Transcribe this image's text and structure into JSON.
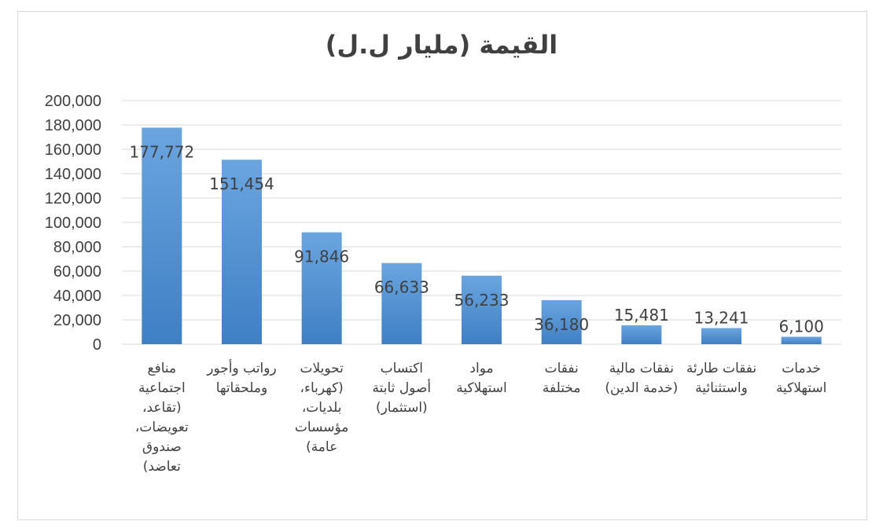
{
  "chart_data": {
    "type": "bar",
    "title": "القيمة  (مليار ل.ل)",
    "categories": [
      "منافع اجتماعية (تقاعد، تعويضات، صندوق تعاضد)",
      "رواتب وأجور وملحقاتها",
      "تحويلات (كهرباء، بلديات، مؤسسات عامة)",
      "اكتساب أصول ثابتة (استثمار)",
      "مواد استهلاكية",
      "نفقات مختلفة",
      "نفقات مالية (خدمة الدين)",
      "نفقات طارئة واستثنائية",
      "خدمات استهلاكية"
    ],
    "values": [
      177772,
      151454,
      91846,
      66633,
      56233,
      36180,
      15481,
      13241,
      6100
    ],
    "data_labels": [
      "177,772",
      "151,454",
      "91,846",
      "66,633",
      "56,233",
      "36,180",
      "15,481",
      "13,241",
      "6,100"
    ],
    "yticks": [
      "0",
      "20,000",
      "40,000",
      "60,000",
      "80,000",
      "100,000",
      "120,000",
      "140,000",
      "160,000",
      "180,000",
      "200,000"
    ],
    "ylim": [
      0,
      200000
    ],
    "xlabel": "",
    "ylabel": "",
    "grid": true,
    "legend": "none",
    "colors": {
      "bar_top": "#6aa5e0",
      "bar_bottom": "#3f7fc4",
      "grid": "#d9d9d9",
      "text": "#404040"
    }
  }
}
